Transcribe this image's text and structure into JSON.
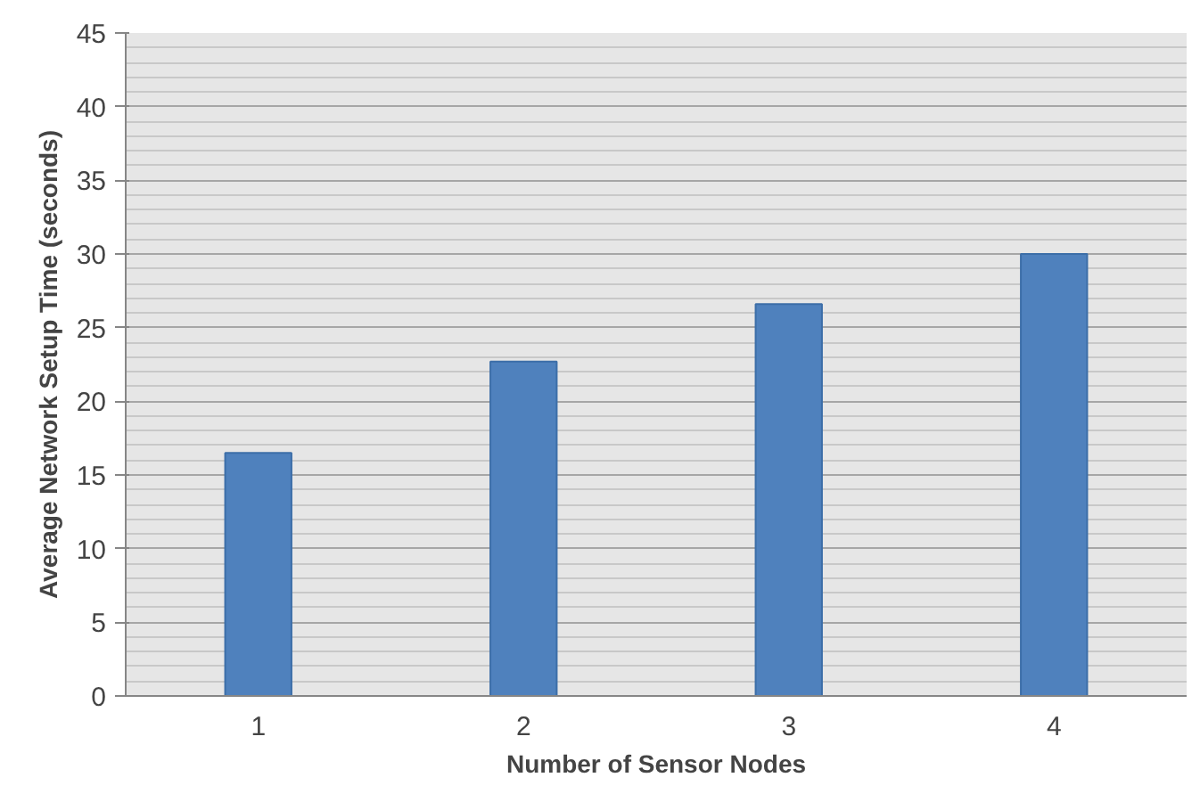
{
  "chart_data": {
    "type": "bar",
    "xlabel": "Number of Sensor Nodes",
    "ylabel": "Average Network Setup Time (seconds)",
    "categories": [
      "1",
      "2",
      "3",
      "4"
    ],
    "values": [
      16.5,
      22.7,
      26.6,
      30.0
    ],
    "color": "#4f81bd",
    "ylim": [
      0,
      45
    ],
    "yticks": [
      0,
      5,
      10,
      15,
      20,
      25,
      30,
      35,
      40,
      45
    ],
    "grid": "y"
  }
}
